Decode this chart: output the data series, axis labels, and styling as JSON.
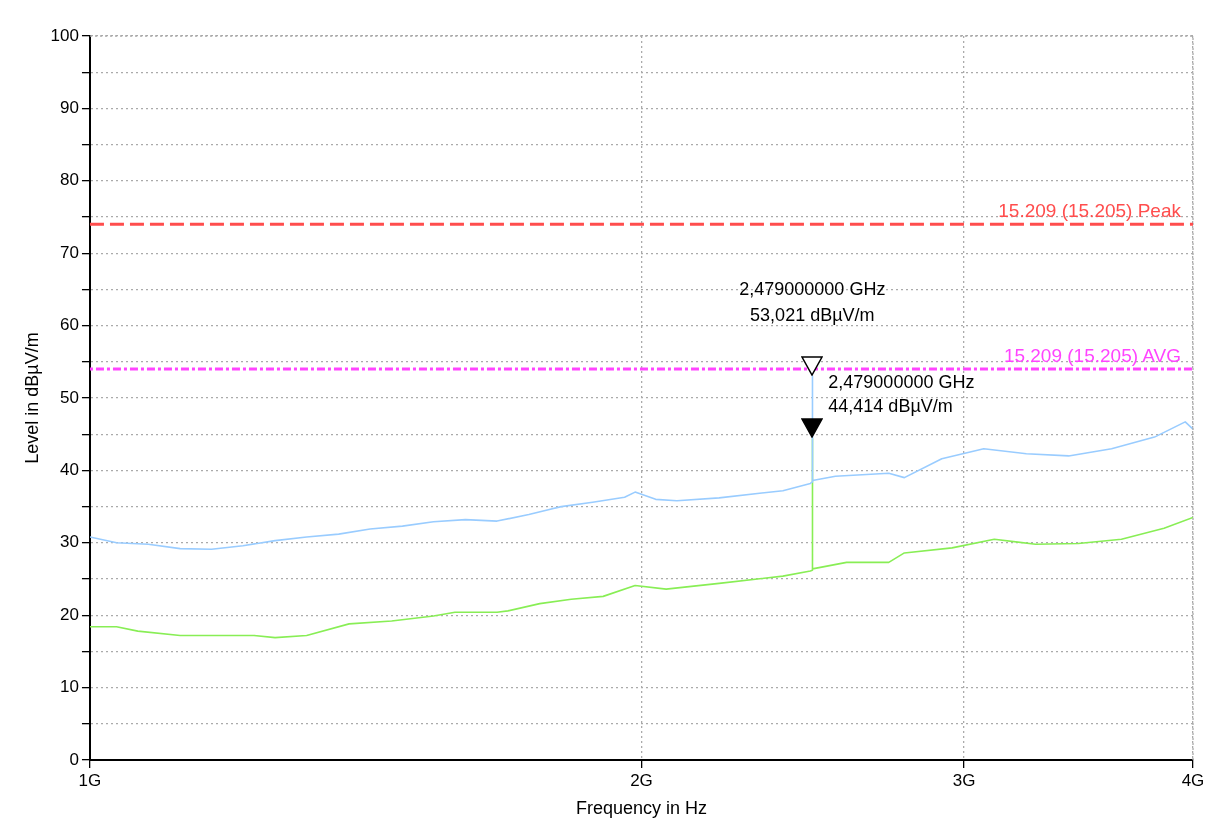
{
  "chart_data": {
    "type": "line",
    "xlabel": "Frequency in Hz",
    "ylabel": "Level in dBµV/m",
    "log": "x",
    "xlim": [
      1,
      4
    ],
    "xticks": [
      {
        "value": 1,
        "label": "1G"
      },
      {
        "value": 2,
        "label": "2G"
      },
      {
        "value": 3,
        "label": "3G"
      },
      {
        "value": 4,
        "label": "4G"
      }
    ],
    "ylim": [
      0,
      100
    ],
    "yticks": [
      0,
      {
        "value": 5,
        "label": null
      },
      10,
      {
        "value": 15,
        "label": null
      },
      20,
      {
        "value": 25,
        "label": null
      },
      30,
      {
        "value": 35,
        "label": null
      },
      40,
      {
        "value": 45,
        "label": null
      },
      50,
      {
        "value": 55,
        "label": null
      },
      60,
      {
        "value": 65,
        "label": null
      },
      70,
      {
        "value": 75,
        "label": null
      },
      80,
      {
        "value": 85,
        "label": null
      },
      90,
      {
        "value": 95,
        "label": null
      },
      100
    ],
    "grid": true,
    "legend": false,
    "marker": "none",
    "series": [
      {
        "color": "#99ccff",
        "x": [
          1,
          1.034,
          1.076,
          1.12,
          1.165,
          1.212,
          1.262,
          1.313,
          1.367,
          1.422,
          1.481,
          1.54,
          1.603,
          1.668,
          1.736,
          1.808,
          1.881,
          1.958,
          1.984,
          2.036,
          2.091,
          2.205,
          2.389,
          2.473,
          2.479,
          2.479,
          2.48,
          2.552,
          2.729,
          2.783,
          2.917,
          3.075,
          3.244,
          3.421,
          3.611,
          3.811,
          3.961,
          4
        ],
        "values": [
          30.8,
          30.0,
          29.8,
          29.2,
          29.1,
          29.6,
          30.3,
          30.8,
          31.2,
          31.9,
          32.3,
          32.9,
          33.2,
          33.0,
          33.9,
          35.0,
          35.6,
          36.3,
          37.0,
          36.0,
          35.8,
          36.2,
          37.2,
          38.2,
          38.4,
          53.021,
          38.6,
          39.2,
          39.6,
          39.0,
          41.6,
          43.0,
          42.3,
          42.0,
          43.0,
          44.6,
          46.7,
          45.7
        ]
      },
      {
        "color": "#88ee55",
        "x": [
          1,
          1.034,
          1.062,
          1.12,
          1.229,
          1.262,
          1.313,
          1.385,
          1.461,
          1.54,
          1.582,
          1.668,
          1.691,
          1.76,
          1.831,
          1.906,
          1.984,
          2.063,
          2.205,
          2.389,
          2.473,
          2.479,
          2.479,
          2.48,
          2.588,
          2.729,
          2.783,
          2.955,
          3.116,
          3.282,
          3.463,
          3.656,
          3.857,
          4
        ],
        "values": [
          18.4,
          18.4,
          17.8,
          17.2,
          17.2,
          16.9,
          17.2,
          18.8,
          19.2,
          19.9,
          20.4,
          20.4,
          20.6,
          21.6,
          22.2,
          22.6,
          24.1,
          23.6,
          24.4,
          25.4,
          26.1,
          26.2,
          44.414,
          26.4,
          27.3,
          27.3,
          28.6,
          29.3,
          30.5,
          29.8,
          29.9,
          30.5,
          32.0,
          33.5
        ]
      }
    ],
    "ref_lines": [
      {
        "axis": "y",
        "value": 74,
        "label": "15.209 (15.205) Peak",
        "color": "#ff4d4d",
        "line_style": "dashed"
      },
      {
        "axis": "y",
        "value": 54,
        "label": "15.209 (15.205) AVG",
        "color": "#ff44ff",
        "line_style": "dotted"
      }
    ],
    "annotations": [
      {
        "text": "2,479000000 GHz\n53,021 dBµV/m",
        "x": 2.479,
        "y": 53.021
      },
      {
        "text": "2,479000000 GHz\n44,414 dBµV/m",
        "x": 2.479,
        "y": 44.414
      }
    ]
  }
}
